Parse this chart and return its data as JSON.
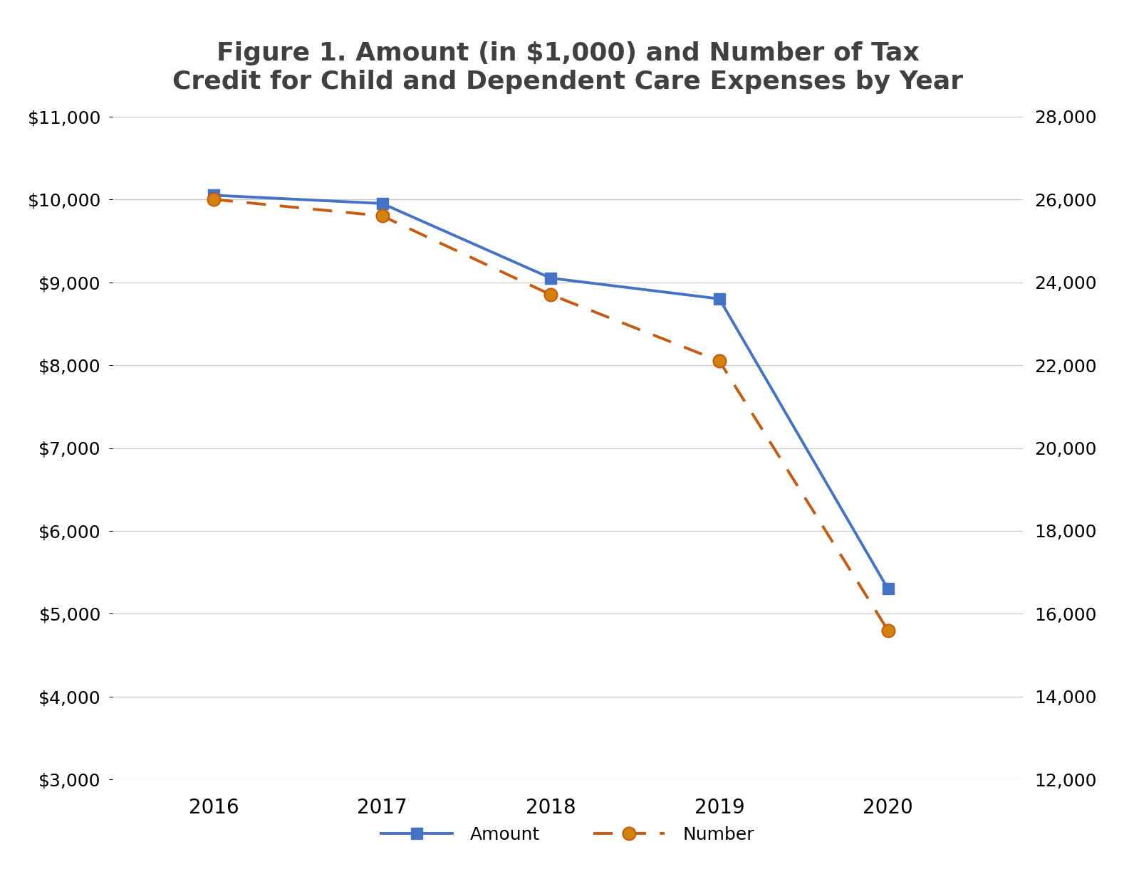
{
  "title": "Figure 1. Amount (in $1,000) and Number of Tax\nCredit for Child and Dependent Care Expenses by Year",
  "years": [
    2016,
    2017,
    2018,
    2019,
    2020
  ],
  "amount": [
    10050,
    9950,
    9050,
    8800,
    5300
  ],
  "number": [
    26000,
    25600,
    23700,
    22100,
    15600
  ],
  "amount_color": "#4472C4",
  "number_color": "#C55A11",
  "marker_fill_number": "#D47A1A",
  "left_ylim": [
    3000,
    11000
  ],
  "right_ylim": [
    12000,
    28000
  ],
  "left_yticks": [
    3000,
    4000,
    5000,
    6000,
    7000,
    8000,
    9000,
    10000,
    11000
  ],
  "right_yticks": [
    12000,
    14000,
    16000,
    18000,
    20000,
    22000,
    24000,
    26000,
    28000
  ],
  "background_color": "#ffffff",
  "grid_color": "#c8c8c8",
  "title_fontsize": 26,
  "tick_fontsize": 18,
  "legend_fontsize": 18,
  "amount_label": "Amount",
  "number_label": "Number",
  "xlim": [
    2015.4,
    2020.8
  ]
}
